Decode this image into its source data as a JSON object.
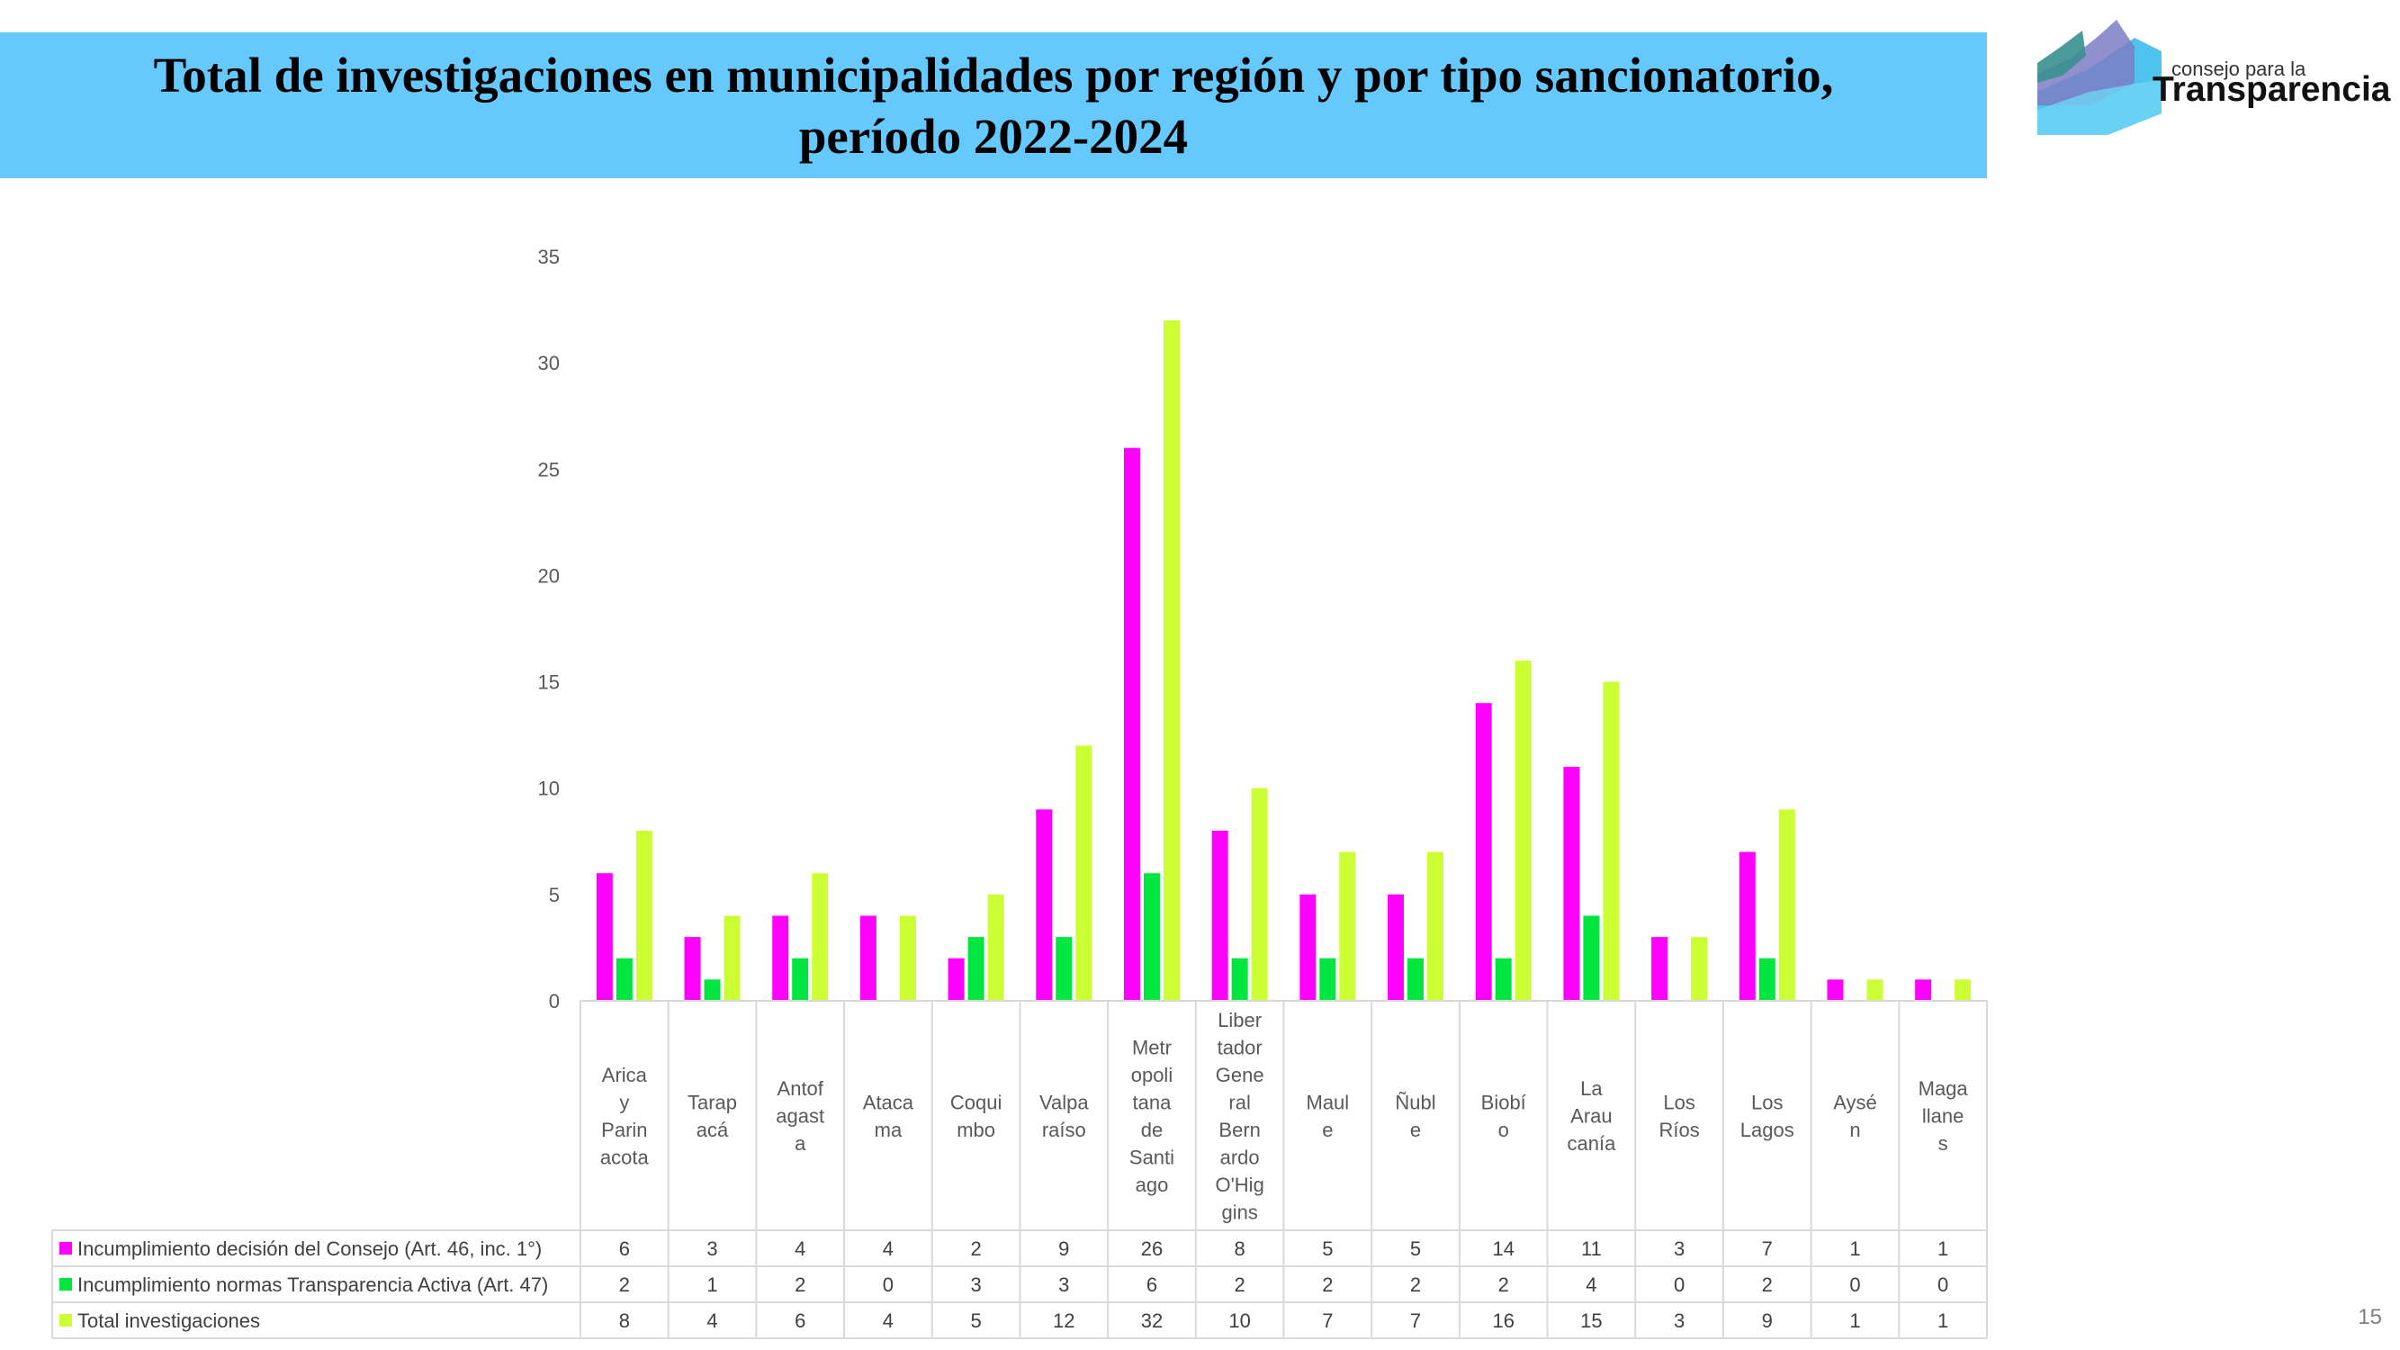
{
  "header": {
    "title_line1": "Total de investigaciones en municipalidades por región y por tipo sancionatorio,",
    "title_line2": "período 2022-2024"
  },
  "logo": {
    "small_text": "consejo para la",
    "big_text": "Transparencia"
  },
  "page_number": "15",
  "chart_data": {
    "type": "bar",
    "title": "Total de investigaciones en municipalidades por región y por tipo sancionatorio, período 2022-2024",
    "xlabel": "",
    "ylabel": "",
    "ylim": [
      0,
      35
    ],
    "yticks": [
      0,
      5,
      10,
      15,
      20,
      25,
      30,
      35
    ],
    "grid": false,
    "legend": "data-table-left",
    "categories": [
      "Arica y Parinacota",
      "Tarapacá",
      "Antofagasta",
      "Atacama",
      "Coquimbo",
      "Valparaíso",
      "Metropolitana de Santiago",
      "Libertador General Bernardo O'Higgins",
      "Maule",
      "Ñuble",
      "Biobío",
      "La Araucanía",
      "Los Ríos",
      "Los Lagos",
      "Aysén",
      "Magallanes"
    ],
    "category_label_lines": [
      [
        "Arica",
        "y",
        "Parin",
        "acota"
      ],
      [
        "Tarap",
        "acá"
      ],
      [
        "Antof",
        "agast",
        "a"
      ],
      [
        "Ataca",
        "ma"
      ],
      [
        "Coqui",
        "mbo"
      ],
      [
        "Valpa",
        "raíso"
      ],
      [
        "Metr",
        "opoli",
        "tana",
        "de",
        "Santi",
        "ago"
      ],
      [
        "Liber",
        "tador",
        "Gene",
        "ral",
        "Bern",
        "ardo",
        "O'Hig",
        "gins"
      ],
      [
        "Maul",
        "e"
      ],
      [
        "Ñubl",
        "e"
      ],
      [
        "Biobí",
        "o"
      ],
      [
        "La",
        "Arau",
        "canía"
      ],
      [
        "Los",
        "Ríos"
      ],
      [
        "Los",
        "Lagos"
      ],
      [
        "Aysé",
        "n"
      ],
      [
        "Maga",
        "llane",
        "s"
      ]
    ],
    "series": [
      {
        "name": "Incumplimiento decisión del Consejo (Art. 46, inc. 1°)",
        "color": "#ff00ff",
        "values": [
          6,
          3,
          4,
          4,
          2,
          9,
          26,
          8,
          5,
          5,
          14,
          11,
          3,
          7,
          1,
          1
        ]
      },
      {
        "name": "Incumplimiento normas Transparencia Activa (Art. 47)",
        "color": "#00e640",
        "values": [
          2,
          1,
          2,
          0,
          3,
          3,
          6,
          2,
          2,
          2,
          2,
          4,
          0,
          2,
          0,
          0
        ]
      },
      {
        "name": "Total investigaciones",
        "color": "#ccff33",
        "values": [
          8,
          4,
          6,
          4,
          5,
          12,
          32,
          10,
          7,
          7,
          16,
          15,
          3,
          9,
          1,
          1
        ]
      }
    ]
  }
}
